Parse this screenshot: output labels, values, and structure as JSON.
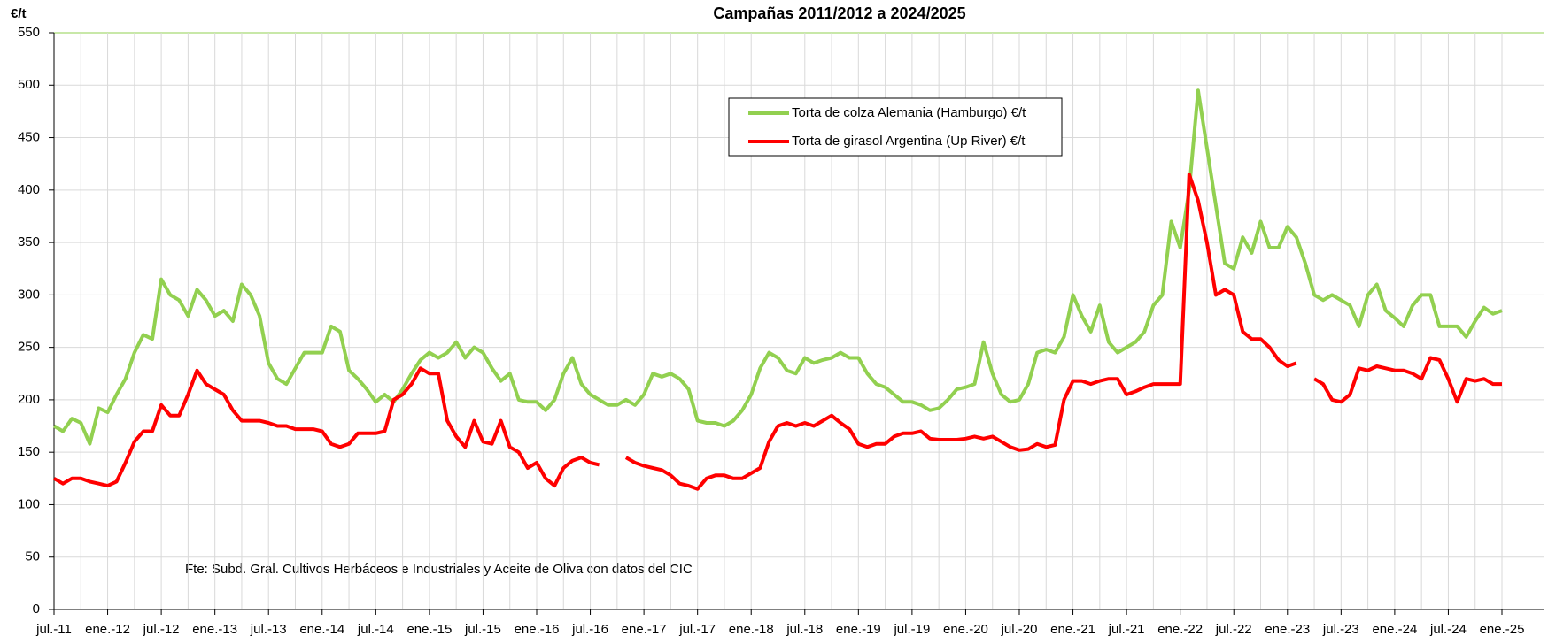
{
  "chart_data": {
    "type": "line",
    "title": "Campañas 2011/2012 a 2024/2025",
    "y_label": "€/t",
    "annotation": "Fte: Subd. Gral. Cultivos Herbáceos e Industriales y Aceite de Oliva con datos del CIC",
    "categories": [
      "jul.-11",
      null,
      null,
      null,
      null,
      null,
      "ene.-12",
      null,
      null,
      null,
      null,
      null,
      "jul.-12",
      null,
      null,
      null,
      null,
      null,
      "ene.-13",
      null,
      null,
      null,
      null,
      null,
      "jul.-13",
      null,
      null,
      null,
      null,
      null,
      "ene.-14",
      null,
      null,
      null,
      null,
      null,
      "jul.-14",
      null,
      null,
      null,
      null,
      null,
      "ene.-15",
      null,
      null,
      null,
      null,
      null,
      "jul.-15",
      null,
      null,
      null,
      null,
      null,
      "ene.-16",
      null,
      null,
      null,
      null,
      null,
      "jul.-16",
      null,
      null,
      null,
      null,
      null,
      "ene.-17",
      null,
      null,
      null,
      null,
      null,
      "jul.-17",
      null,
      null,
      null,
      null,
      null,
      "ene.-18",
      null,
      null,
      null,
      null,
      null,
      "jul.-18",
      null,
      null,
      null,
      null,
      null,
      "ene.-19",
      null,
      null,
      null,
      null,
      null,
      "jul.-19",
      null,
      null,
      null,
      null,
      null,
      "ene.-20",
      null,
      null,
      null,
      null,
      null,
      "jul.-20",
      null,
      null,
      null,
      null,
      null,
      "ene.-21",
      null,
      null,
      null,
      null,
      null,
      "jul.-21",
      null,
      null,
      null,
      null,
      null,
      "ene.-22",
      null,
      null,
      null,
      null,
      null,
      "jul.-22",
      null,
      null,
      null,
      null,
      null,
      "ene.-23",
      null,
      null,
      null,
      null,
      null,
      "jul.-23",
      null,
      null,
      null,
      null,
      null,
      "ene.-24",
      null,
      null,
      null,
      null,
      null,
      "jul.-24",
      null,
      null,
      null,
      null,
      null,
      "ene.-25"
    ],
    "series": [
      {
        "name": "Torta de colza Alemania (Hamburgo) €/t",
        "color": "#92d050",
        "values": [
          175,
          170,
          182,
          178,
          158,
          192,
          188,
          205,
          220,
          245,
          262,
          258,
          315,
          300,
          295,
          280,
          305,
          295,
          280,
          285,
          275,
          310,
          300,
          280,
          235,
          220,
          215,
          230,
          245,
          245,
          245,
          270,
          265,
          228,
          220,
          210,
          198,
          205,
          198,
          210,
          225,
          238,
          245,
          240,
          245,
          255,
          240,
          250,
          245,
          230,
          218,
          225,
          200,
          198,
          198,
          190,
          200,
          225,
          240,
          215,
          205,
          200,
          195,
          195,
          200,
          195,
          205,
          225,
          222,
          225,
          220,
          210,
          180,
          178,
          178,
          175,
          180,
          190,
          205,
          230,
          245,
          240,
          228,
          225,
          240,
          235,
          238,
          240,
          245,
          240,
          240,
          225,
          215,
          212,
          205,
          198,
          198,
          195,
          190,
          192,
          200,
          210,
          212,
          215,
          255,
          225,
          205,
          198,
          200,
          215,
          245,
          248,
          245,
          260,
          300,
          280,
          265,
          290,
          255,
          245,
          250,
          255,
          265,
          290,
          300,
          370,
          345,
          400,
          495,
          440,
          385,
          330,
          325,
          355,
          340,
          370,
          345,
          345,
          365,
          355,
          330,
          300,
          295,
          300,
          295,
          290,
          270,
          300,
          310,
          285,
          278,
          270,
          290,
          300,
          300,
          270,
          270,
          270,
          260,
          275,
          288,
          282,
          285
        ]
      },
      {
        "name": "Torta de girasol Argentina (Up River) €/t",
        "color": "#ff0000",
        "values": [
          125,
          120,
          125,
          125,
          122,
          120,
          118,
          122,
          140,
          160,
          170,
          170,
          195,
          185,
          185,
          205,
          228,
          215,
          210,
          205,
          190,
          180,
          180,
          180,
          178,
          175,
          175,
          172,
          172,
          172,
          170,
          158,
          155,
          158,
          168,
          168,
          168,
          170,
          200,
          205,
          215,
          230,
          225,
          225,
          180,
          165,
          155,
          180,
          160,
          158,
          180,
          155,
          150,
          135,
          140,
          125,
          118,
          135,
          142,
          145,
          140,
          138,
          null,
          null,
          145,
          140,
          137,
          135,
          133,
          128,
          120,
          118,
          115,
          125,
          128,
          128,
          125,
          125,
          130,
          135,
          160,
          175,
          178,
          175,
          178,
          175,
          180,
          185,
          178,
          172,
          158,
          155,
          158,
          158,
          165,
          168,
          168,
          170,
          163,
          162,
          162,
          162,
          163,
          165,
          163,
          165,
          160,
          155,
          152,
          153,
          158,
          155,
          157,
          200,
          218,
          218,
          215,
          218,
          220,
          220,
          205,
          208,
          212,
          215,
          215,
          215,
          215,
          415,
          390,
          350,
          300,
          305,
          300,
          265,
          258,
          258,
          250,
          238,
          232,
          235,
          null,
          220,
          215,
          200,
          198,
          205,
          230,
          228,
          232,
          230,
          228,
          228,
          225,
          220,
          240,
          238,
          220,
          198,
          220,
          218,
          220,
          215,
          215
        ]
      }
    ],
    "ylim": [
      0,
      550
    ],
    "yticks": [
      0,
      50,
      100,
      150,
      200,
      250,
      300,
      350,
      400,
      450,
      500,
      550
    ],
    "grid": true
  }
}
